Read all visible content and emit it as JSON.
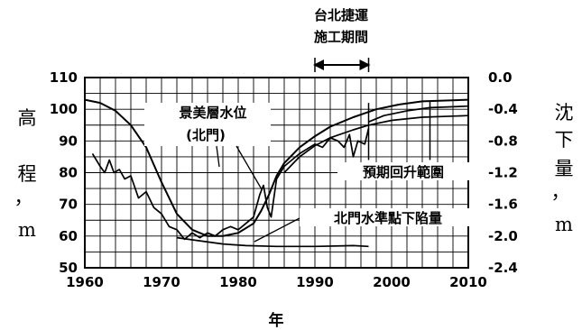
{
  "chart_data": {
    "type": "line",
    "xlabel": "年",
    "y_left_label": [
      "高",
      "程",
      "，",
      "m"
    ],
    "y_right_label": [
      "沈",
      "下",
      "量",
      "，",
      "m"
    ],
    "x_ticks": [
      1960,
      1970,
      1980,
      1990,
      2000,
      2010
    ],
    "x_range": [
      1960,
      2010
    ],
    "y_left_ticks": [
      50,
      60,
      70,
      80,
      90,
      100,
      110
    ],
    "y_left_range": [
      50,
      110
    ],
    "y_right_ticks": [
      "0.0",
      "-0.4",
      "-0.8",
      "-1.2",
      "-1.6",
      "-2.0",
      "-2.4"
    ],
    "y_right_range": [
      0,
      -2.4
    ],
    "grid": true,
    "annotations": {
      "construction_line1": "台北捷運",
      "construction_line2": "施工期間",
      "construction_period": [
        1990,
        1997
      ],
      "groundwater_line1": "景美層水位",
      "groundwater_line2": "(北門)",
      "predicted": "預期回升範圍",
      "subsidence": "北門水準點下陷量"
    },
    "series": [
      {
        "axis": "left",
        "points": [
          [
            1960,
            103
          ],
          [
            1962,
            102
          ],
          [
            1964,
            99.5
          ],
          [
            1966,
            95
          ],
          [
            1968,
            88
          ],
          [
            1970,
            77
          ],
          [
            1972,
            67
          ],
          [
            1974,
            62
          ],
          [
            1976,
            60
          ],
          [
            1978,
            60
          ],
          [
            1980,
            61
          ],
          [
            1982,
            64
          ],
          [
            1983,
            68
          ],
          [
            1984,
            73
          ],
          [
            1985,
            79
          ],
          [
            1986,
            83
          ],
          [
            1988,
            88
          ],
          [
            1990,
            91.5
          ],
          [
            1992,
            94.5
          ],
          [
            1995,
            97.5
          ],
          [
            1998,
            100
          ],
          [
            2001,
            101.5
          ],
          [
            2004,
            102.5
          ],
          [
            2010,
            103
          ]
        ]
      },
      {
        "axis": "left",
        "points": [
          [
            1961,
            86
          ],
          [
            1962,
            82
          ],
          [
            1962.6,
            80
          ],
          [
            1963.2,
            84
          ],
          [
            1963.8,
            80
          ],
          [
            1964.5,
            81
          ],
          [
            1965.2,
            78
          ],
          [
            1966,
            79
          ],
          [
            1967,
            72
          ],
          [
            1968,
            74
          ],
          [
            1969,
            69
          ],
          [
            1970,
            67
          ],
          [
            1971,
            63
          ],
          [
            1972,
            62
          ],
          [
            1973,
            59
          ],
          [
            1974,
            61
          ],
          [
            1975,
            59.5
          ],
          [
            1976,
            61
          ],
          [
            1977,
            60
          ],
          [
            1978,
            62
          ],
          [
            1979,
            63
          ],
          [
            1980,
            62
          ],
          [
            1981,
            64
          ],
          [
            1982,
            66
          ],
          [
            1982.8,
            73
          ],
          [
            1983.3,
            76
          ],
          [
            1983.8,
            69
          ],
          [
            1984.3,
            66
          ],
          [
            1985,
            78
          ],
          [
            1986,
            82
          ],
          [
            1987,
            84
          ],
          [
            1988,
            86
          ],
          [
            1989,
            87.5
          ],
          [
            1990,
            89
          ],
          [
            1991,
            88
          ],
          [
            1992,
            91
          ],
          [
            1993,
            90
          ],
          [
            1993.8,
            88
          ],
          [
            1994.5,
            92
          ],
          [
            1995,
            85
          ],
          [
            1995.6,
            90
          ],
          [
            1996.5,
            89
          ],
          [
            1997,
            94
          ]
        ]
      },
      {
        "axis": "right",
        "points": [
          [
            1972,
            -2.02
          ],
          [
            1975,
            -2.06
          ],
          [
            1978,
            -2.1
          ],
          [
            1981,
            -2.12
          ],
          [
            1985,
            -2.13
          ],
          [
            1990,
            -2.13
          ],
          [
            1995,
            -2.12
          ],
          [
            1997,
            -2.13
          ]
        ]
      },
      {
        "axis": "left",
        "points": [
          [
            1986,
            80
          ],
          [
            1988,
            85
          ],
          [
            1990,
            88.5
          ],
          [
            1992,
            91
          ],
          [
            1995,
            93.5
          ],
          [
            1997,
            95
          ],
          [
            2000,
            96.5
          ],
          [
            2004,
            97.5
          ],
          [
            2010,
            98
          ]
        ]
      },
      {
        "axis": "left",
        "points": [
          [
            1997,
            96
          ],
          [
            1999,
            98
          ],
          [
            2002,
            99.5
          ],
          [
            2005,
            100.5
          ],
          [
            2010,
            101
          ]
        ]
      }
    ]
  }
}
